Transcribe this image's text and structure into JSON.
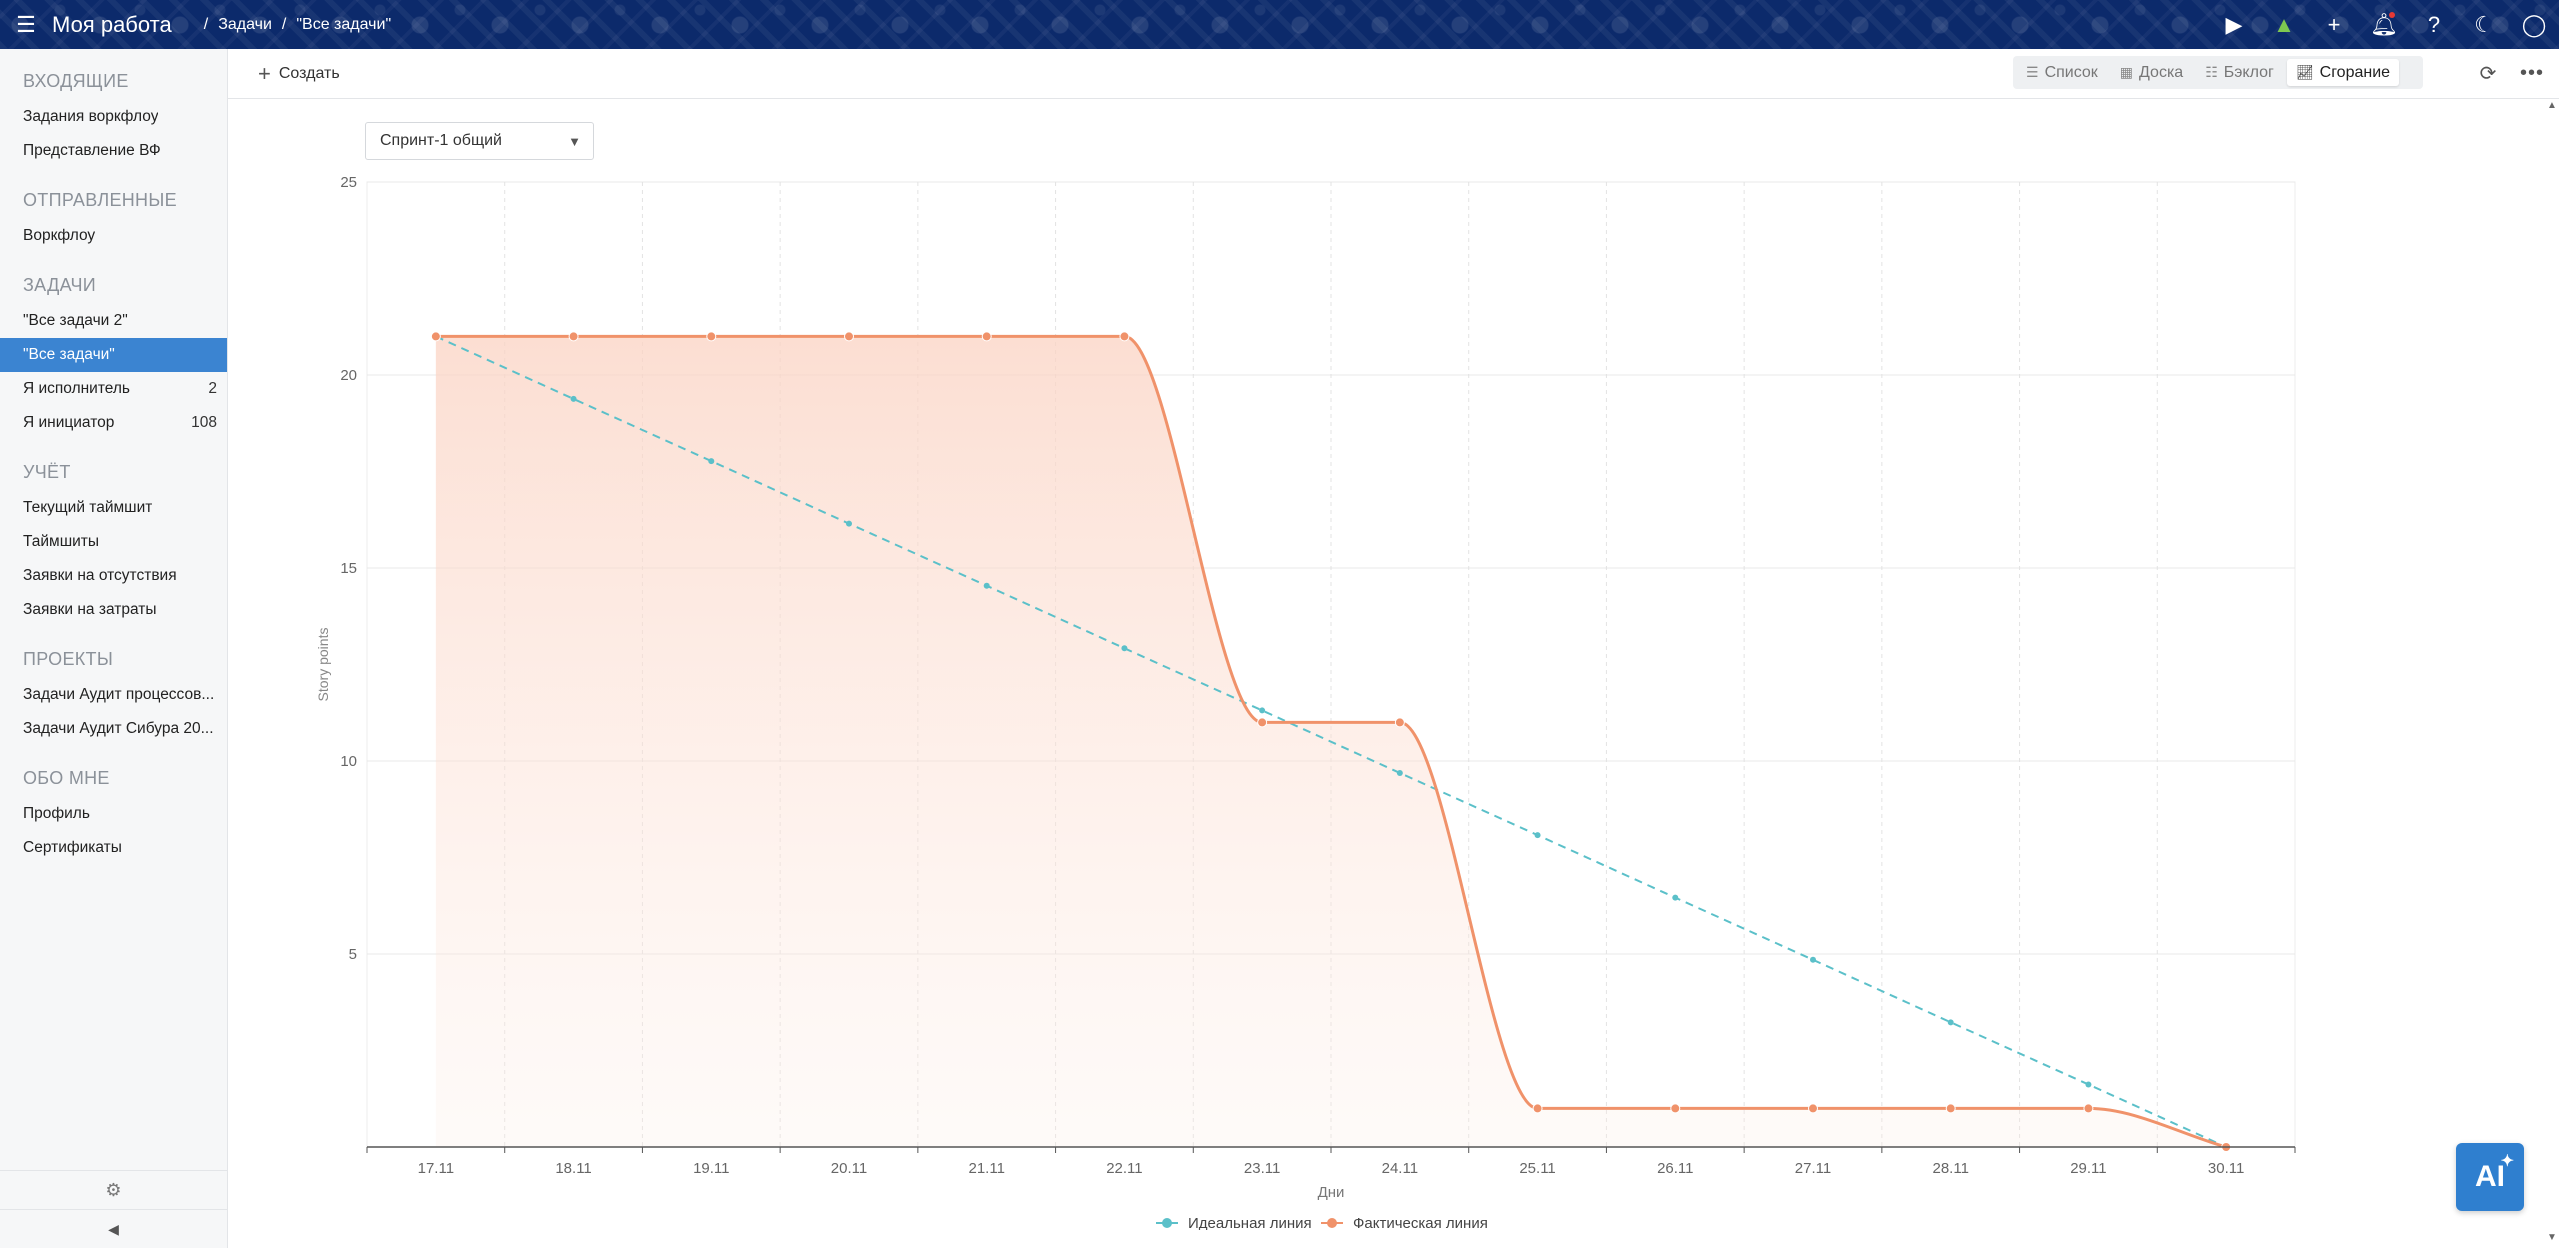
{
  "header": {
    "app_title": "Моя работа",
    "breadcrumb": [
      "Задачи",
      "\"Все задачи\""
    ]
  },
  "sidebar": {
    "sections": [
      {
        "title": "ВХОДЯЩИЕ",
        "items": [
          {
            "label": "Задания воркфлоу"
          },
          {
            "label": "Представление ВФ"
          }
        ]
      },
      {
        "title": "ОТПРАВЛЕННЫЕ",
        "items": [
          {
            "label": "Воркфлоу"
          }
        ]
      },
      {
        "title": "ЗАДАЧИ",
        "items": [
          {
            "label": "\"Все задачи 2\""
          },
          {
            "label": "\"Все задачи\"",
            "active": true
          },
          {
            "label": "Я исполнитель",
            "count": "2"
          },
          {
            "label": "Я инициатор",
            "count": "108"
          }
        ]
      },
      {
        "title": "УЧЁТ",
        "items": [
          {
            "label": "Текущий таймшит"
          },
          {
            "label": "Таймшиты"
          },
          {
            "label": "Заявки на отсутствия"
          },
          {
            "label": "Заявки на затраты"
          }
        ]
      },
      {
        "title": "ПРОЕКТЫ",
        "items": [
          {
            "label": "Задачи Аудит процессов..."
          },
          {
            "label": "Задачи Аудит Сибура 20..."
          }
        ]
      },
      {
        "title": "ОБО МНЕ",
        "items": [
          {
            "label": "Профиль"
          },
          {
            "label": "Сертификаты"
          }
        ]
      }
    ]
  },
  "toolbar": {
    "create_label": "Создать",
    "views": [
      {
        "label": "Список",
        "icon": "list-icon"
      },
      {
        "label": "Доска",
        "icon": "board-icon"
      },
      {
        "label": "Бэклог",
        "icon": "backlog-icon"
      },
      {
        "label": "Сгорание",
        "icon": "chart-icon",
        "active": true
      }
    ]
  },
  "sprint_select": {
    "value": "Спринт-1 общий"
  },
  "ai_button": {
    "label": "AI"
  },
  "chart_data": {
    "type": "line",
    "categories": [
      "17.11",
      "18.11",
      "19.11",
      "20.11",
      "21.11",
      "22.11",
      "23.11",
      "24.11",
      "25.11",
      "26.11",
      "27.11",
      "28.11",
      "29.11",
      "30.11"
    ],
    "series": [
      {
        "name": "Идеальная линия",
        "color": "#5bc0c9",
        "dashed": true,
        "values": [
          21,
          19.38,
          17.77,
          16.15,
          14.54,
          12.92,
          11.31,
          9.69,
          8.08,
          6.46,
          4.85,
          3.23,
          1.62,
          0
        ]
      },
      {
        "name": "Фактическая линия",
        "color": "#f0926a",
        "area": true,
        "values": [
          21,
          21,
          21,
          21,
          21,
          21,
          11,
          11,
          1,
          1,
          1,
          1,
          1,
          0
        ]
      }
    ],
    "xlabel": "Дни",
    "ylabel": "Story points",
    "ylim": [
      0,
      25
    ],
    "yticks": [
      5,
      10,
      15,
      20,
      25
    ],
    "grid": true,
    "legend": "bottom"
  }
}
